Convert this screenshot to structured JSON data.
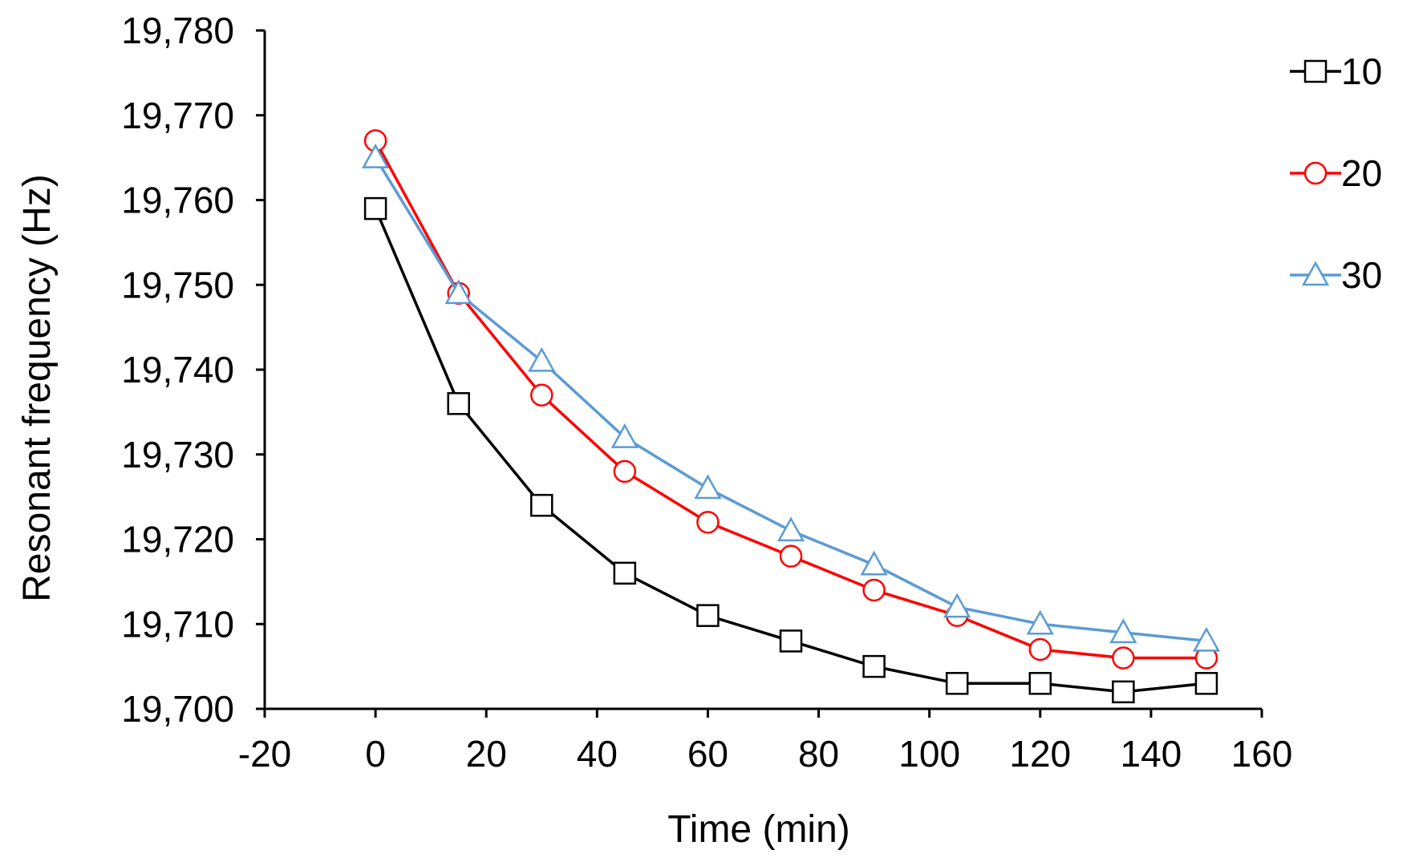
{
  "chart_data": {
    "type": "line",
    "title": "",
    "xlabel": "Time (min)",
    "ylabel": "Resonant frequency (Hz)",
    "xlim": [
      -20,
      160
    ],
    "ylim": [
      19700,
      19780
    ],
    "xticks": [
      -20,
      0,
      20,
      40,
      60,
      80,
      100,
      120,
      140,
      160
    ],
    "xtick_labels": [
      "-20",
      "0",
      "20",
      "40",
      "60",
      "80",
      "100",
      "120",
      "140",
      "160"
    ],
    "yticks": [
      19700,
      19710,
      19720,
      19730,
      19740,
      19750,
      19760,
      19770,
      19780
    ],
    "ytick_labels": [
      "19,700",
      "19,710",
      "19,720",
      "19,730",
      "19,740",
      "19,750",
      "19,760",
      "19,770",
      "19,780"
    ],
    "grid": false,
    "legend_position": "top-right",
    "x": [
      0,
      15,
      30,
      45,
      60,
      75,
      90,
      105,
      120,
      135,
      150
    ],
    "series": [
      {
        "name": "10",
        "marker": "square",
        "color": "#000000",
        "values": [
          19759,
          19736,
          19724,
          19716,
          19711,
          19708,
          19705,
          19703,
          19703,
          19702,
          19703
        ]
      },
      {
        "name": "20",
        "marker": "circle",
        "color": "#ff0000",
        "values": [
          19767,
          19749,
          19737,
          19728,
          19722,
          19718,
          19714,
          19711,
          19707,
          19706,
          19706
        ]
      },
      {
        "name": "30",
        "marker": "triangle",
        "color": "#5b9bd5",
        "values": [
          19765,
          19749,
          19741,
          19732,
          19726,
          19721,
          19717,
          19712,
          19710,
          19709,
          19708
        ]
      }
    ]
  }
}
